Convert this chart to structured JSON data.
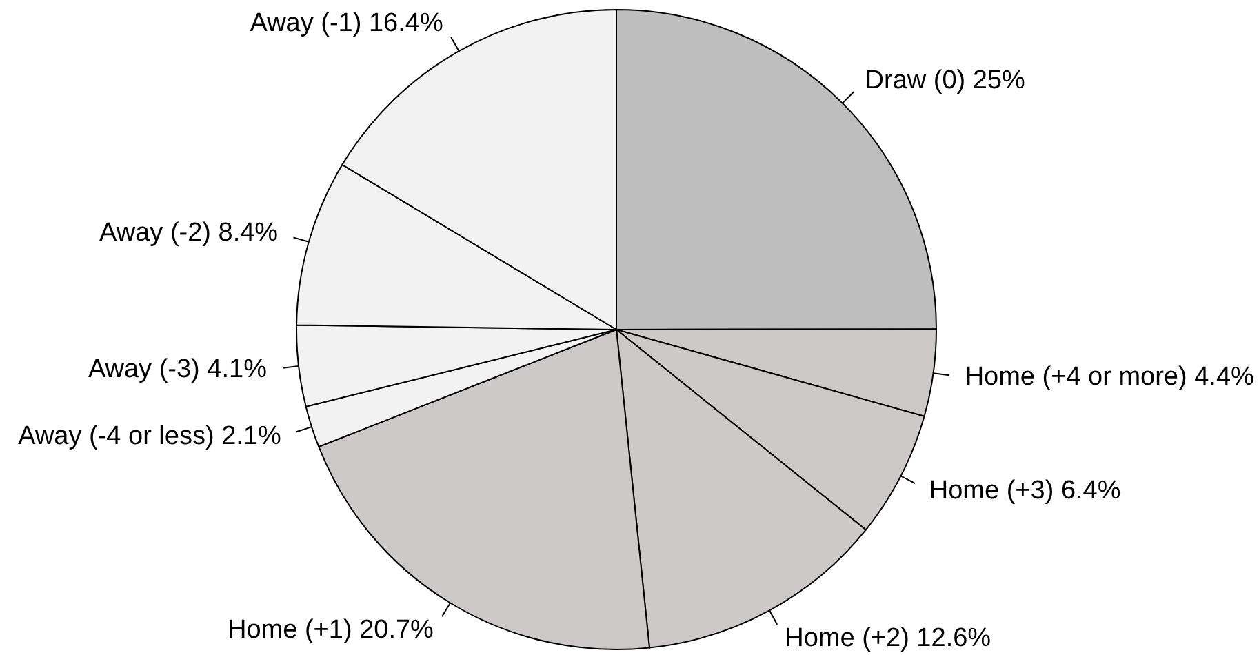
{
  "chart_data": {
    "type": "pie",
    "categories": [
      "Draw (0)",
      "Home (+4 or more)",
      "Home (+3)",
      "Home (+2)",
      "Home (+1)",
      "Away (-4 or less)",
      "Away (-3)",
      "Away (-2)",
      "Away (-1)"
    ],
    "values": [
      25,
      4.4,
      6.4,
      12.6,
      20.7,
      2.1,
      4.1,
      8.4,
      16.4
    ],
    "value_labels": [
      "25%",
      "4.4%",
      "6.4%",
      "12.6%",
      "20.7%",
      "2.1%",
      "4.1%",
      "8.4%",
      "16.4%"
    ],
    "colors": [
      "#bebebe",
      "#cdc9c9",
      "#cdc9c9",
      "#cdc9c9",
      "#cdc9c9",
      "#f2f2f2",
      "#f2f2f2",
      "#f2f2f2",
      "#f2f2f2"
    ]
  }
}
